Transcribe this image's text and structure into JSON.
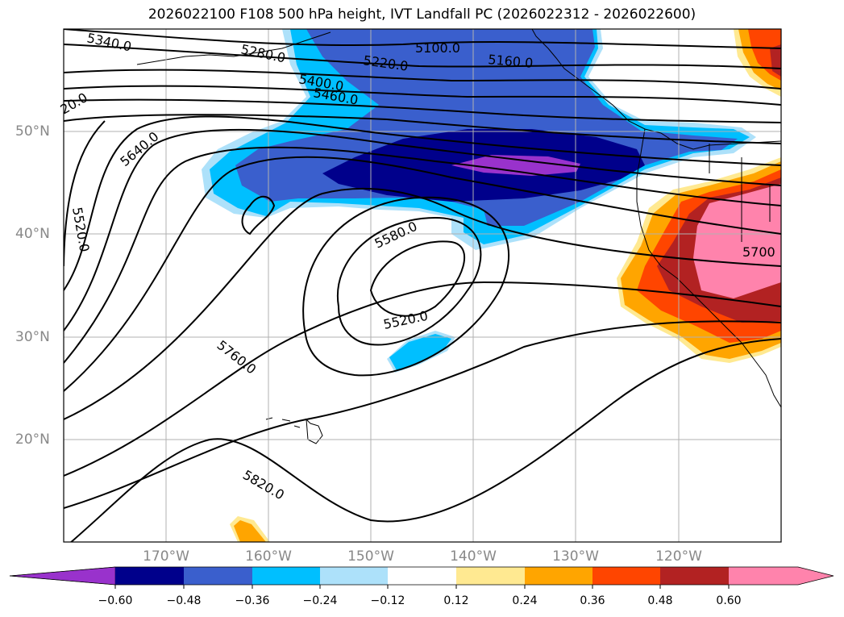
{
  "title": "2026022100 F108 500 hPa height, IVT Landfall PC (2026022312 - 2026022600)",
  "map": {
    "lon_labels": [
      "170°W",
      "160°W",
      "150°W",
      "140°W",
      "130°W",
      "120°W"
    ],
    "lat_labels": [
      "50°N",
      "40°N",
      "30°N",
      "20°N"
    ],
    "contour_labels": [
      "5340.0",
      "5280.0",
      "5220.0",
      "5100.0",
      "5160.0",
      "5400.0",
      "5460.0",
      "20.0",
      "5640.0",
      "5520.0",
      "5580.0",
      "5520.0",
      "5760.0",
      "5820.0",
      "5700"
    ]
  },
  "colorbar": {
    "ticks": [
      "−0.60",
      "−0.48",
      "−0.36",
      "−0.24",
      "−0.12",
      "0.12",
      "0.24",
      "0.36",
      "0.48",
      "0.60"
    ],
    "colors": [
      "#9932CC",
      "#00008B",
      "#3A5FCD",
      "#00BFFF",
      "#ADE1FA",
      "#FFFFFF",
      "#FFE991",
      "#FFA500",
      "#FF4500",
      "#B22222",
      "#FF83AC"
    ]
  }
}
